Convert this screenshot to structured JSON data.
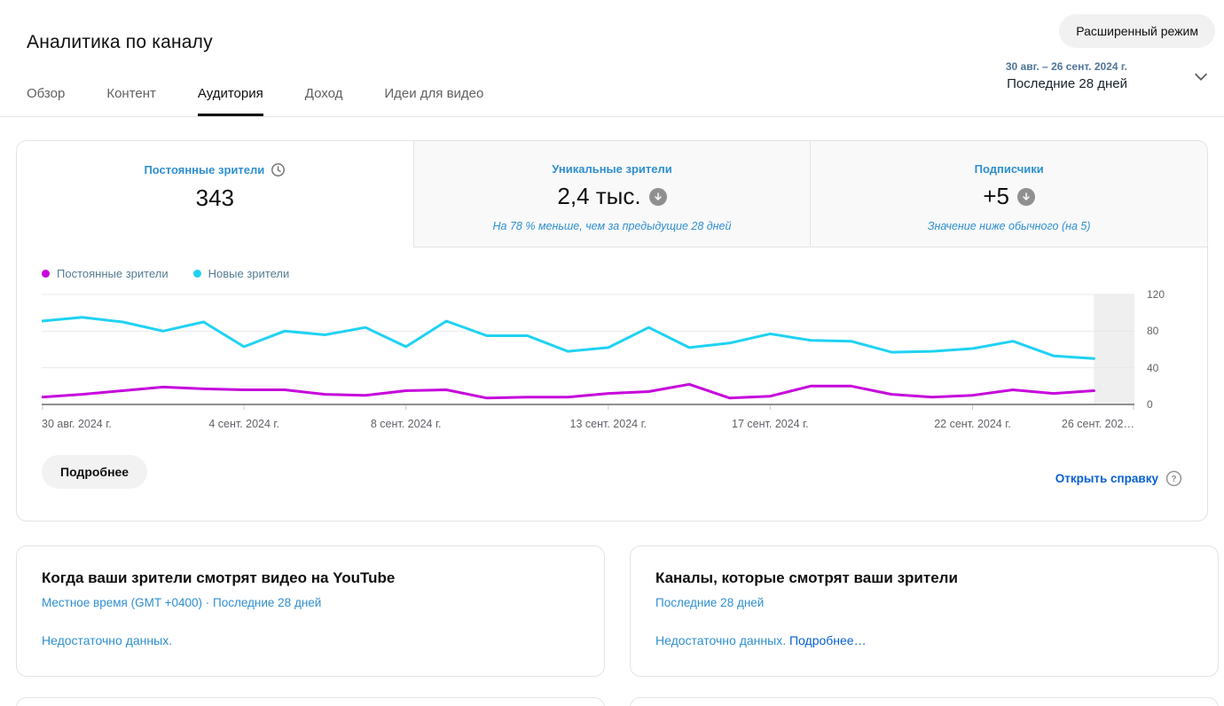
{
  "header": {
    "title": "Аналитика по каналу",
    "advanced_mode_button": "Расширенный режим",
    "tabs": [
      "Обзор",
      "Контент",
      "Аудитория",
      "Доход",
      "Идеи для видео"
    ],
    "active_tab": "Аудитория",
    "date_range": "30 авг. – 26 сент. 2024 г.",
    "date_preset": "Последние 28 дней"
  },
  "metric_tabs": [
    {
      "label": "Постоянные зрители",
      "value": "343",
      "icon": "clock-icon",
      "note": ""
    },
    {
      "label": "Уникальные зрители",
      "value": "2,4 тыс.",
      "icon": "down-arrow-badge",
      "note": "На 78 % меньше, чем за предыдущие 28 дней"
    },
    {
      "label": "Подписчики",
      "value": "+5",
      "icon": "down-arrow-badge",
      "note": "Значение ниже обычного (на 5)"
    }
  ],
  "chart_data": {
    "type": "line",
    "num_days": 28,
    "ylim": [
      0,
      120
    ],
    "yticks": [
      0,
      40,
      80,
      120
    ],
    "grid": true,
    "legend_position": "top-left",
    "x_tick_labels": [
      "30 авг. 2024 г.",
      "4 сент. 2024 г.",
      "8 сент. 2024 г.",
      "13 сент. 2024 г.",
      "17 сент. 2024 г.",
      "22 сент. 2024 г.",
      "26 сент. 202…"
    ],
    "x_tick_day_index": [
      0,
      5,
      9,
      14,
      18,
      23,
      27
    ],
    "series": [
      {
        "name": "Постоянные зрители",
        "color": "#c603dc",
        "values": [
          8,
          11,
          15,
          19,
          17,
          16,
          16,
          11,
          10,
          15,
          16,
          7,
          8,
          8,
          12,
          14,
          22,
          7,
          9,
          20,
          20,
          11,
          8,
          10,
          16,
          12,
          15
        ]
      },
      {
        "name": "Новые зрители",
        "color": "#1fd2f2",
        "values": [
          91,
          95,
          90,
          80,
          90,
          63,
          80,
          76,
          84,
          63,
          91,
          75,
          75,
          58,
          62,
          84,
          62,
          67,
          77,
          70,
          69,
          57,
          58,
          61,
          69,
          53,
          50
        ]
      }
    ],
    "highlight_band": {
      "from_day": 26,
      "to_day": 27,
      "color": "#efefef"
    }
  },
  "chart_footer": {
    "details_button": "Подробнее",
    "help_link": "Открыть справку"
  },
  "cards": [
    {
      "title": "Когда ваши зрители смотрят видео на YouTube",
      "subtitle": "Местное время (GMT +0400) · Последние 28 дней",
      "body": "Недостаточно данных.",
      "link": ""
    },
    {
      "title": "Каналы, которые смотрят ваши зрители",
      "subtitle": "Последние 28 дней",
      "body": "Недостаточно данных.",
      "link": "Подробнее…"
    }
  ],
  "colors": {
    "accent_blue_label": "#2e8fd0",
    "link_blue": "#065fd4",
    "series_returning": "#c603dc",
    "series_new": "#1fd2f2",
    "highlight_band": "#efefef"
  }
}
